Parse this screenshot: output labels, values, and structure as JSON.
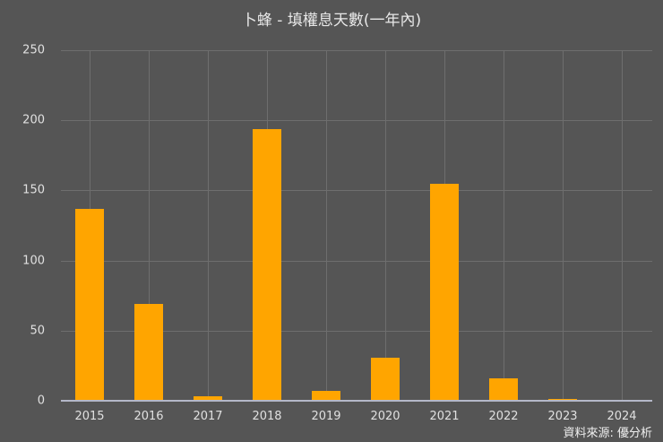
{
  "title": "卜蜂 - 填權息天數(一年內)",
  "source": "資料來源: 優分析",
  "colors": {
    "background": "#555555",
    "bar": "#ffa500",
    "grid": "#6e6e6e",
    "baseline": "#b4b8c8"
  },
  "chart_data": {
    "type": "bar",
    "title": "卜蜂 - 填權息天數(一年內)",
    "xlabel": "",
    "ylabel": "",
    "categories": [
      "2015",
      "2016",
      "2017",
      "2018",
      "2019",
      "2020",
      "2021",
      "2022",
      "2023",
      "2024"
    ],
    "values": [
      137,
      69,
      3,
      194,
      7,
      31,
      155,
      16,
      1,
      0
    ],
    "yticks": [
      0,
      50,
      100,
      150,
      200,
      250
    ],
    "ylim": [
      0,
      250
    ],
    "grid": true,
    "legend": null,
    "annotation": "資料來源: 優分析"
  }
}
